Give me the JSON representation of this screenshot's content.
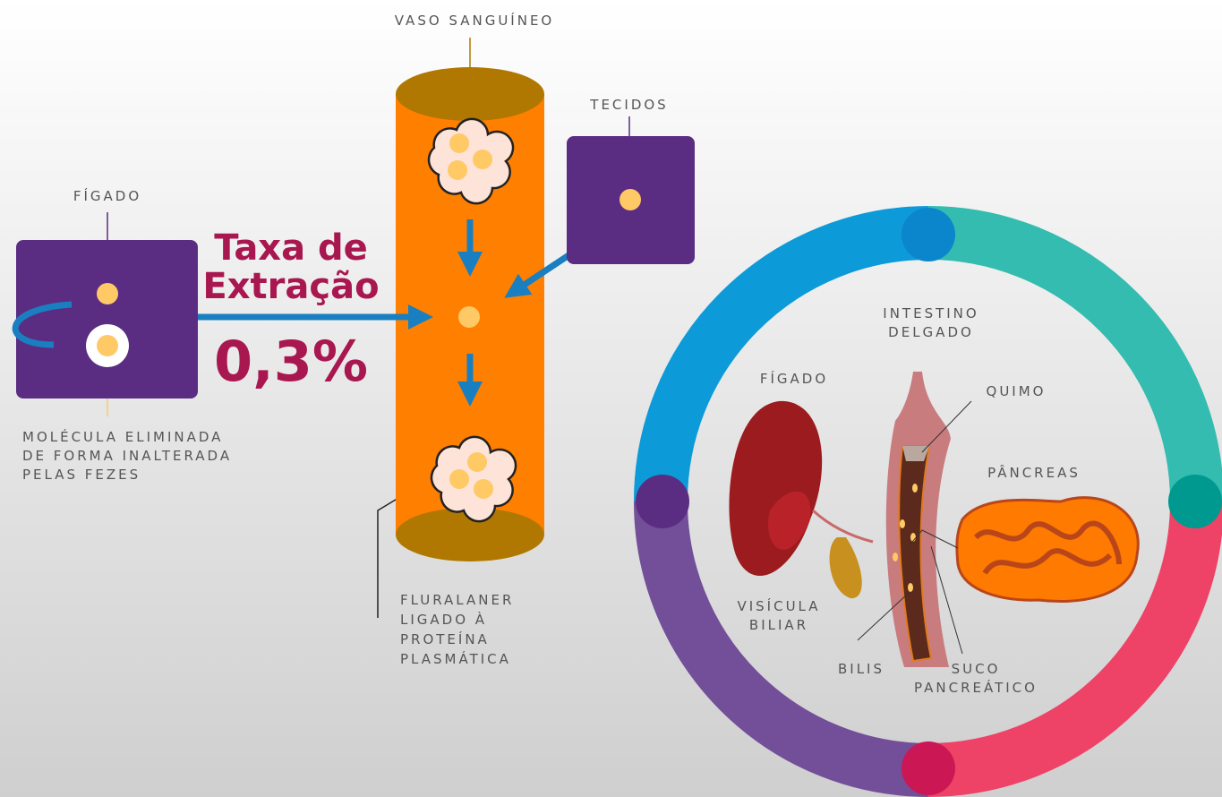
{
  "blood_vessel": {
    "label": "VASO SANGUÍNEO"
  },
  "tissues": {
    "label": "TECIDOS"
  },
  "liver": {
    "label": "FÍGADO"
  },
  "extraction": {
    "title_lines": [
      "Taxa de",
      "Extração"
    ],
    "value": "0,3%"
  },
  "excreted_note": {
    "lines": [
      "MOLÉCULA ELIMINADA",
      "DE FORMA INALTERADA",
      "PELAS FEZES"
    ]
  },
  "bound_note": {
    "lines": [
      "FLURALANER",
      "LIGADO À",
      "PROTEÍNA",
      "PLASMÁTICA"
    ]
  },
  "intestine_diagram": {
    "title_lines": [
      "INTESTINO",
      "DELGADO"
    ],
    "liver": "FÍGADO",
    "chyme": "QUIMO",
    "pancreas": "PÂNCREAS",
    "gallbladder_lines": [
      "VISÍCULA",
      "BILIAR"
    ],
    "bile": "BILIS",
    "pancreatic_juice_lines": [
      "SUCO",
      "PANCREÁTICO"
    ]
  }
}
